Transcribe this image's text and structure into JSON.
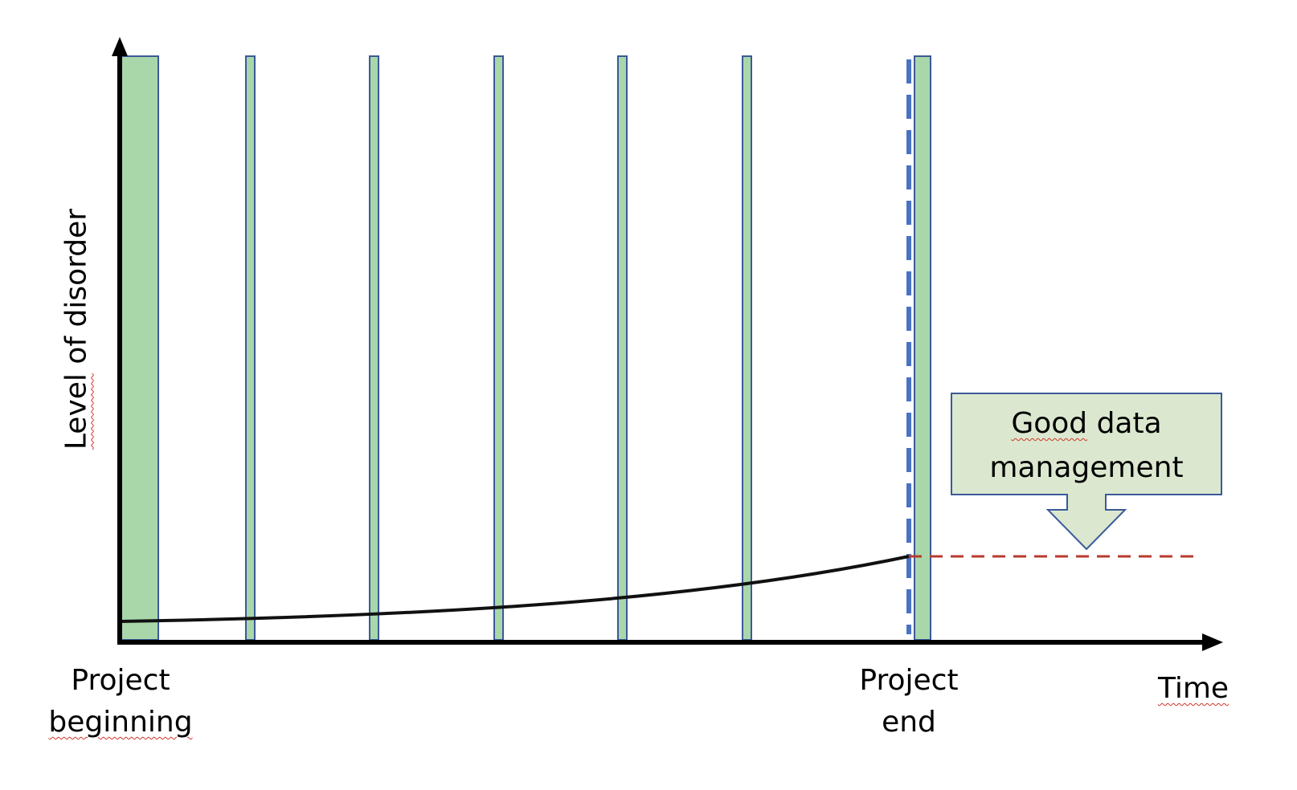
{
  "axes": {
    "y_label_word1": "Level",
    "y_label_rest": " of disorder",
    "x_label": "Time"
  },
  "markers": {
    "start_line1": "Project",
    "start_line2": "beginning",
    "end_line1": "Project",
    "end_line2": "end"
  },
  "callout": {
    "line1_word1": "Good",
    "line1_rest": " data",
    "line2": "management"
  },
  "colors": {
    "bar_fill": "#a9d7a9",
    "bar_stroke": "#3a5a9a",
    "curve": "#111111",
    "project_end_line": "#4a72c4",
    "good_management_line": "#b83a2e",
    "callout_fill": "#dbe8cf",
    "callout_stroke": "#3a5a9a"
  }
}
